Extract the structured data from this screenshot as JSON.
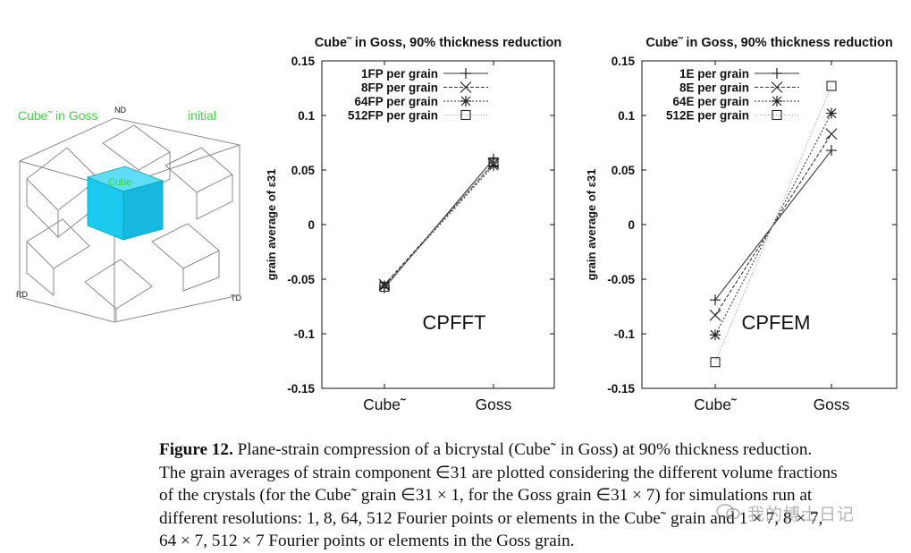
{
  "micro": {
    "label_left": "Cube˜ in Goss",
    "label_right": "initial",
    "nd": "ND",
    "rd": "RD",
    "td": "TD",
    "cube_label": "Cube",
    "accent_green": "#33dd33",
    "cube_color": "#1ccaf0"
  },
  "chart_data": [
    {
      "type": "line",
      "title": "Cube˜ in Goss, 90% thickness reduction",
      "ylabel": "grain average of ε31",
      "categories": [
        "Cube˜",
        "Goss"
      ],
      "ylim": [
        -0.15,
        0.15
      ],
      "yticks": [
        "0.15",
        "0.1",
        "0.05",
        "0",
        "-0.05",
        "-0.1",
        "-0.15"
      ],
      "ytick_values": [
        0.15,
        0.1,
        0.05,
        0,
        -0.05,
        -0.1,
        -0.15
      ],
      "annotation": "CPFFT",
      "series": [
        {
          "name": "1FP per grain",
          "values": [
            -0.058,
            0.06
          ],
          "marker": "plus",
          "dash": "none"
        },
        {
          "name": "8FP per grain",
          "values": [
            -0.055,
            0.056
          ],
          "marker": "x",
          "dash": "4,2"
        },
        {
          "name": "64FP per grain",
          "values": [
            -0.056,
            0.054
          ],
          "marker": "star",
          "dash": "2,2"
        },
        {
          "name": "512FP per grain",
          "values": [
            -0.057,
            0.057
          ],
          "marker": "square",
          "dash": "1,2"
        }
      ]
    },
    {
      "type": "line",
      "title": "Cube˜ in Goss, 90% thickness reduction",
      "ylabel": "grain average of ε31",
      "categories": [
        "Cube˜",
        "Goss"
      ],
      "ylim": [
        -0.15,
        0.15
      ],
      "yticks": [
        "0.15",
        "0.1",
        "0.05",
        "0",
        "-0.05",
        "-0.1",
        "-0.15"
      ],
      "ytick_values": [
        0.15,
        0.1,
        0.05,
        0,
        -0.05,
        -0.1,
        -0.15
      ],
      "annotation": "CPFEM",
      "series": [
        {
          "name": "1E per grain",
          "values": [
            -0.069,
            0.068
          ],
          "marker": "plus",
          "dash": "none"
        },
        {
          "name": "8E per grain",
          "values": [
            -0.083,
            0.083
          ],
          "marker": "x",
          "dash": "4,2"
        },
        {
          "name": "64E per grain",
          "values": [
            -0.101,
            0.102
          ],
          "marker": "star",
          "dash": "2,2"
        },
        {
          "name": "512E per grain",
          "values": [
            -0.126,
            0.127
          ],
          "marker": "square",
          "dash": "1,2"
        }
      ]
    }
  ],
  "caption": {
    "figure_label": "Figure 12.",
    "line1": "Plane-strain compression of a bicrystal (Cube˜ in Goss) at 90% thickness reduction.",
    "line2": "The grain averages of strain component ∈31 are plotted considering the different volume fractions",
    "line3": "of the crystals (for the Cube˜ grain ∈31 × 1, for the Goss grain ∈31 × 7) for simulations run at",
    "line4": "different resolutions: 1, 8, 64, 512 Fourier points or elements in the Cube˜ grain and 1 × 7, 8 × 7,",
    "line5": "64 × 7, 512 × 7 Fourier points or elements in the Goss grain."
  },
  "watermark": {
    "text": "我的博士日记",
    "icon": "wechat-icon"
  }
}
